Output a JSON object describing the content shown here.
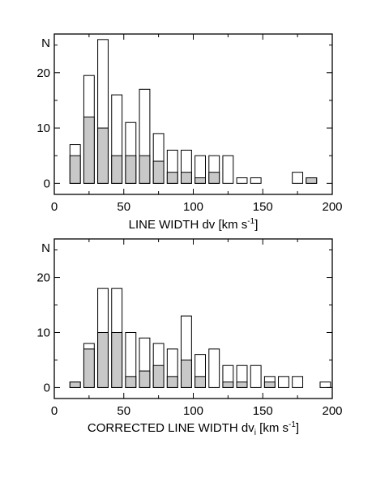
{
  "chart_data": [
    {
      "type": "bar",
      "stacked_overlay": true,
      "ylabel": "N",
      "xlabel_parts": {
        "main": "LINE  WIDTH  dv  [km s",
        "sup": "-1",
        "end": "]"
      },
      "xlim": [
        0,
        200
      ],
      "ylim": [
        -2,
        27
      ],
      "x_ticks": [
        0,
        50,
        100,
        150,
        200
      ],
      "y_ticks": [
        0,
        10,
        20
      ],
      "bin_width": 7.5,
      "bins": [
        {
          "x": 15,
          "total": 7,
          "shaded": 5
        },
        {
          "x": 25,
          "total": 19.5,
          "shaded": 12
        },
        {
          "x": 35,
          "total": 26,
          "shaded": 10
        },
        {
          "x": 45,
          "total": 16,
          "shaded": 5
        },
        {
          "x": 55,
          "total": 11,
          "shaded": 5
        },
        {
          "x": 65,
          "total": 17,
          "shaded": 5
        },
        {
          "x": 75,
          "total": 9,
          "shaded": 4
        },
        {
          "x": 85,
          "total": 6,
          "shaded": 2
        },
        {
          "x": 95,
          "total": 6,
          "shaded": 2
        },
        {
          "x": 105,
          "total": 5,
          "shaded": 1
        },
        {
          "x": 115,
          "total": 5,
          "shaded": 2
        },
        {
          "x": 125,
          "total": 5,
          "shaded": 0
        },
        {
          "x": 135,
          "total": 1,
          "shaded": 0
        },
        {
          "x": 145,
          "total": 1,
          "shaded": 0
        },
        {
          "x": 175,
          "total": 2,
          "shaded": 0
        },
        {
          "x": 185,
          "total": 1,
          "shaded": 1
        }
      ]
    },
    {
      "type": "bar",
      "stacked_overlay": true,
      "ylabel": "N",
      "xlabel_parts": {
        "main": "CORRECTED  LINE  WIDTH  dv",
        "sub": "i",
        "mid": "  [km s",
        "sup": "-1",
        "end": "]"
      },
      "xlim": [
        0,
        200
      ],
      "ylim": [
        -2,
        27
      ],
      "x_ticks": [
        0,
        50,
        100,
        150,
        200
      ],
      "y_ticks": [
        0,
        10,
        20
      ],
      "bin_width": 7.5,
      "bins": [
        {
          "x": 15,
          "total": 1,
          "shaded": 1
        },
        {
          "x": 25,
          "total": 8,
          "shaded": 7
        },
        {
          "x": 35,
          "total": 18,
          "shaded": 10
        },
        {
          "x": 45,
          "total": 18,
          "shaded": 10
        },
        {
          "x": 55,
          "total": 10,
          "shaded": 2
        },
        {
          "x": 65,
          "total": 9,
          "shaded": 3
        },
        {
          "x": 75,
          "total": 8,
          "shaded": 4
        },
        {
          "x": 85,
          "total": 7,
          "shaded": 2
        },
        {
          "x": 95,
          "total": 13,
          "shaded": 5
        },
        {
          "x": 105,
          "total": 6,
          "shaded": 2
        },
        {
          "x": 115,
          "total": 7,
          "shaded": 0
        },
        {
          "x": 125,
          "total": 4,
          "shaded": 1
        },
        {
          "x": 135,
          "total": 4,
          "shaded": 1
        },
        {
          "x": 145,
          "total": 4,
          "shaded": 0
        },
        {
          "x": 155,
          "total": 2,
          "shaded": 1
        },
        {
          "x": 165,
          "total": 2,
          "shaded": 0
        },
        {
          "x": 175,
          "total": 2,
          "shaded": 0
        },
        {
          "x": 195,
          "total": 1,
          "shaded": 0
        }
      ]
    }
  ],
  "colors": {
    "shaded_fill": "#c8c8c8",
    "open_fill": "#ffffff",
    "stroke": "#000000"
  }
}
